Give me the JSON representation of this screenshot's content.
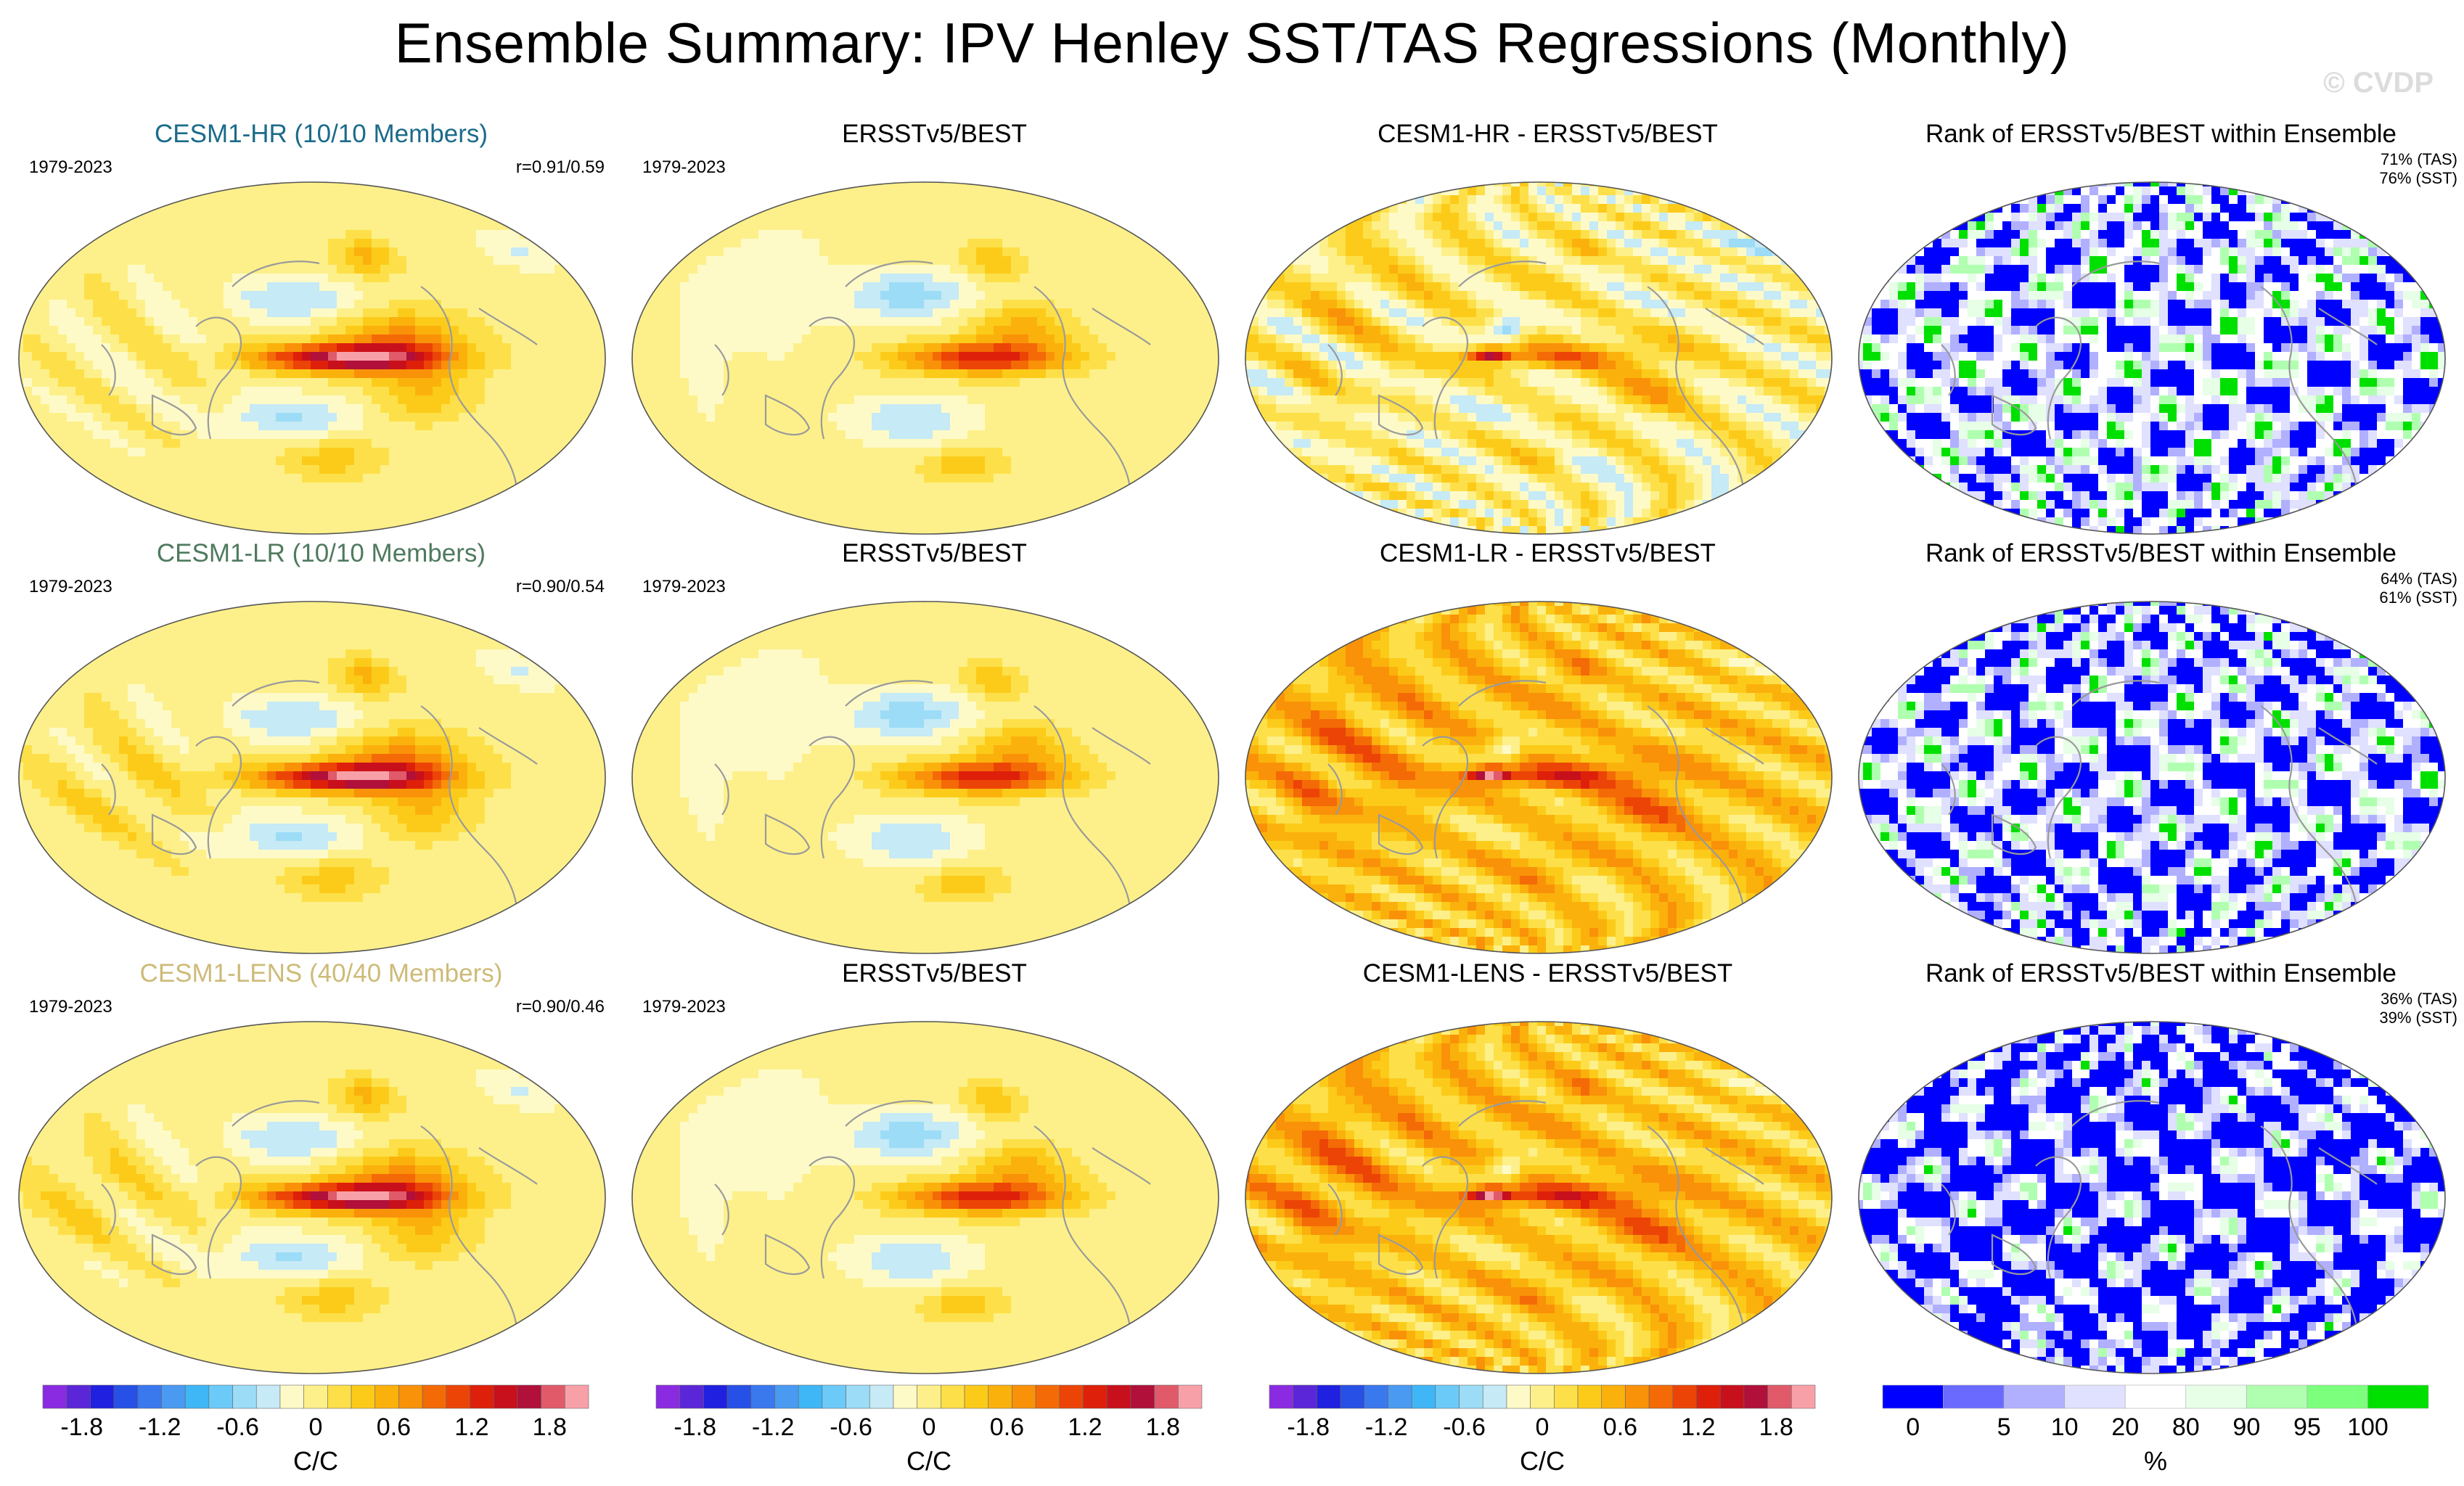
{
  "title": "Ensemble Summary: IPV Henley SST/TAS Regressions (Monthly)",
  "watermark": "© CVDP",
  "colors": {
    "row_titles": [
      "#1b6b8a",
      "#4f7a5e",
      "#cdbb78"
    ],
    "regression_scale": [
      "#8a2be2",
      "#5a26d8",
      "#2020e0",
      "#2650e6",
      "#3a78ee",
      "#4a9af2",
      "#3fb6f6",
      "#6ccaf8",
      "#9cdcf6",
      "#c6eaf6",
      "#fefac8",
      "#fdf08a",
      "#fde049",
      "#fccb1a",
      "#fbb10c",
      "#f99208",
      "#f46a06",
      "#ec4406",
      "#de200a",
      "#c8101c",
      "#b0103a",
      "#e05a6a",
      "#f8a0a8"
    ],
    "rank_scale": [
      "#0000ff",
      "#6a6aff",
      "#b0b0ff",
      "#e0e0ff",
      "#ffffff",
      "#e6ffe6",
      "#b0ffb0",
      "#7cff7c",
      "#00e000"
    ]
  },
  "chart_data": {
    "type": "heatmap",
    "rows": [
      {
        "model_panel": {
          "title": "CESM1-HR (10/10 Members)",
          "period": "1979-2023",
          "correlation": "r=0.91/0.59"
        },
        "obs_panel": {
          "title": "ERSSTv5/BEST",
          "period": "1979-2023"
        },
        "diff_panel": {
          "title": "CESM1-HR - ERSSTv5/BEST"
        },
        "rank_panel": {
          "title": "Rank of ERSSTv5/BEST within Ensemble",
          "pct_tas": "71% (TAS)",
          "pct_sst": "76% (SST)"
        }
      },
      {
        "model_panel": {
          "title": "CESM1-LR (10/10 Members)",
          "period": "1979-2023",
          "correlation": "r=0.90/0.54"
        },
        "obs_panel": {
          "title": "ERSSTv5/BEST",
          "period": "1979-2023"
        },
        "diff_panel": {
          "title": "CESM1-LR - ERSSTv5/BEST"
        },
        "rank_panel": {
          "title": "Rank of ERSSTv5/BEST within Ensemble",
          "pct_tas": "64% (TAS)",
          "pct_sst": "61% (SST)"
        }
      },
      {
        "model_panel": {
          "title": "CESM1-LENS (40/40 Members)",
          "period": "1979-2023",
          "correlation": "r=0.90/0.46"
        },
        "obs_panel": {
          "title": "ERSSTv5/BEST",
          "period": "1979-2023"
        },
        "diff_panel": {
          "title": "CESM1-LENS - ERSSTv5/BEST"
        },
        "rank_panel": {
          "title": "Rank of ERSSTv5/BEST within Ensemble",
          "pct_tas": "36% (TAS)",
          "pct_sst": "39% (SST)"
        }
      }
    ],
    "colorbars": [
      {
        "ticks": [
          "-1.8",
          "-1.2",
          "-0.6",
          "0",
          "0.6",
          "1.2",
          "1.8"
        ],
        "tick_values": [
          -1.8,
          -1.2,
          -0.6,
          0,
          0.6,
          1.2,
          1.8
        ],
        "range": [
          -2.1,
          2.1
        ],
        "unit": "C/C"
      },
      {
        "ticks": [
          "-1.8",
          "-1.2",
          "-0.6",
          "0",
          "0.6",
          "1.2",
          "1.8"
        ],
        "tick_values": [
          -1.8,
          -1.2,
          -0.6,
          0,
          0.6,
          1.2,
          1.8
        ],
        "range": [
          -2.1,
          2.1
        ],
        "unit": "C/C"
      },
      {
        "ticks": [
          "-1.8",
          "-1.2",
          "-0.6",
          "0",
          "0.6",
          "1.2",
          "1.8"
        ],
        "tick_values": [
          -1.8,
          -1.2,
          -0.6,
          0,
          0.6,
          1.2,
          1.8
        ],
        "range": [
          -2.1,
          2.1
        ],
        "unit": "C/C"
      },
      {
        "ticks": [
          "0",
          "5",
          "10",
          "20",
          "80",
          "90",
          "95",
          "100"
        ],
        "unit": "%"
      }
    ]
  }
}
